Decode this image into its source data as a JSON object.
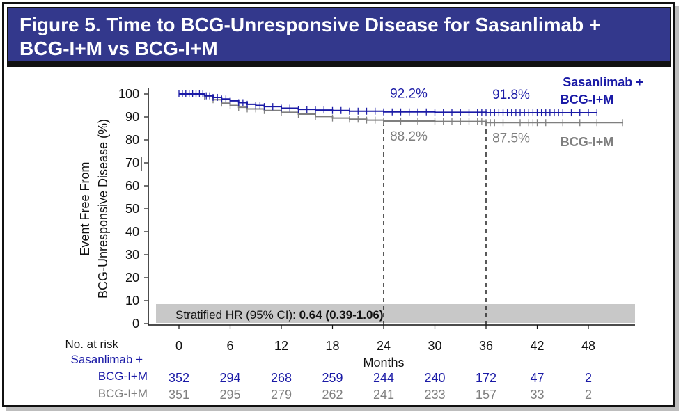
{
  "title": "Figure 5. Time to BCG-Unresponsive Disease for Sasanlimab + BCG-I+M vs BCG-I+M",
  "title_line1": "Figure 5. Time to BCG-Unresponsive Disease for Sasanlimab +",
  "title_line2": "BCG-I+M vs BCG-I+M",
  "colors": {
    "title_bg": "#33388c",
    "sasanlimab": "#1a1aa6",
    "bcg": "#7f7f7f",
    "hr_box": "#c8c8c8"
  },
  "chart_data": {
    "type": "line",
    "subtype": "kaplan-meier",
    "xlabel": "Months",
    "ylabel_line1": "Event Free From",
    "ylabel_line2": "BCG-Unresponsive Disease (%)",
    "xlim": [
      -2,
      54
    ],
    "ylim": [
      0,
      100
    ],
    "x_ticks": [
      "0",
      "6",
      "12",
      "18",
      "24",
      "30",
      "36",
      "42",
      "48"
    ],
    "x_tick_values": [
      0,
      6,
      12,
      18,
      24,
      30,
      36,
      42,
      48
    ],
    "y_ticks": [
      "0",
      "10",
      "20",
      "30",
      "40",
      "50",
      "60",
      "70",
      "80",
      "90",
      "100"
    ],
    "y_tick_values": [
      0,
      10,
      20,
      30,
      40,
      50,
      60,
      70,
      80,
      90,
      100
    ],
    "grid": false,
    "series": [
      {
        "name": "Sasanlimab + BCG-I+M",
        "legend_line1": "Sasanlimab +",
        "legend_line2": "BCG-I+M",
        "color": "#1a1aa6",
        "x": [
          0,
          2,
          3,
          4,
          5,
          6,
          7,
          8,
          9,
          10,
          12,
          14,
          16,
          18,
          20,
          24,
          30,
          36,
          42,
          48,
          49
        ],
        "y": [
          100,
          100,
          99.2,
          98.5,
          97.8,
          97.0,
          96.2,
          95.5,
          95.0,
          94.5,
          93.8,
          93.3,
          93.0,
          92.8,
          92.5,
          92.2,
          92.0,
          91.8,
          91.8,
          91.8,
          91.8
        ],
        "censor_ticks": [
          0,
          0.4,
          0.8,
          1.2,
          1.6,
          2,
          2.4,
          2.8,
          3.2,
          3.6,
          4,
          4.5,
          5,
          5.5,
          6,
          7,
          7.5,
          8,
          9,
          9.5,
          10,
          11,
          12,
          13,
          14,
          15,
          16,
          17,
          18,
          19,
          20,
          21,
          22,
          23,
          24,
          25,
          26,
          27,
          28,
          29,
          30,
          31,
          32,
          33,
          34,
          35,
          35.5,
          36,
          36.5,
          37,
          37.5,
          38,
          38.5,
          39,
          39.5,
          40,
          40.5,
          41,
          41.5,
          42,
          42.5,
          43,
          43.5,
          44,
          44.5,
          45,
          46,
          47,
          48,
          49
        ]
      },
      {
        "name": "BCG-I+M",
        "legend_line1": "BCG-I+M",
        "color": "#7f7f7f",
        "x": [
          0,
          2,
          3,
          4,
          5,
          6,
          7,
          8,
          10,
          12,
          14,
          16,
          18,
          20,
          22,
          24,
          30,
          36,
          42,
          48,
          52
        ],
        "y": [
          100,
          100,
          99.0,
          97.5,
          96.0,
          95.0,
          94.2,
          93.5,
          92.8,
          92.0,
          91.2,
          90.2,
          89.5,
          89.0,
          88.6,
          88.2,
          88.0,
          87.5,
          87.5,
          87.5,
          87.5
        ],
        "censor_ticks": [
          3,
          4,
          5,
          6,
          7,
          8,
          9,
          10,
          12,
          14,
          16,
          18,
          20,
          21,
          22,
          23,
          24,
          26,
          28,
          30,
          31,
          32,
          33,
          34,
          35,
          35.5,
          36,
          36.5,
          37,
          38,
          40,
          41,
          41.5,
          42,
          43,
          45,
          47,
          49,
          52
        ]
      }
    ],
    "annotations": [
      {
        "text": "92.2%",
        "x": 24,
        "y": 92.2,
        "series": "Sasanlimab + BCG-I+M",
        "position": "above"
      },
      {
        "text": "91.8%",
        "x": 36,
        "y": 91.8,
        "series": "Sasanlimab + BCG-I+M",
        "position": "above"
      },
      {
        "text": "88.2%",
        "x": 24,
        "y": 88.2,
        "series": "BCG-I+M",
        "position": "below"
      },
      {
        "text": "87.5%",
        "x": 36,
        "y": 87.5,
        "series": "BCG-I+M",
        "position": "below"
      }
    ],
    "reference_lines_x": [
      24,
      36
    ],
    "hr_label": "Stratified HR (95% CI): ",
    "hr_value": "0.64 (0.39-1.06)",
    "risk_table": {
      "header": "No. at risk",
      "times": [
        0,
        6,
        12,
        18,
        24,
        30,
        36,
        42,
        48
      ],
      "rows": [
        {
          "label_line1": "Sasanlimab +",
          "label_line2": "BCG-I+M",
          "color": "#1a1aa6",
          "values": [
            "352",
            "294",
            "268",
            "259",
            "244",
            "240",
            "172",
            "47",
            "2"
          ]
        },
        {
          "label_line1": "BCG-I+M",
          "color": "#7f7f7f",
          "values": [
            "351",
            "295",
            "279",
            "262",
            "241",
            "233",
            "157",
            "33",
            "2"
          ]
        }
      ]
    }
  }
}
